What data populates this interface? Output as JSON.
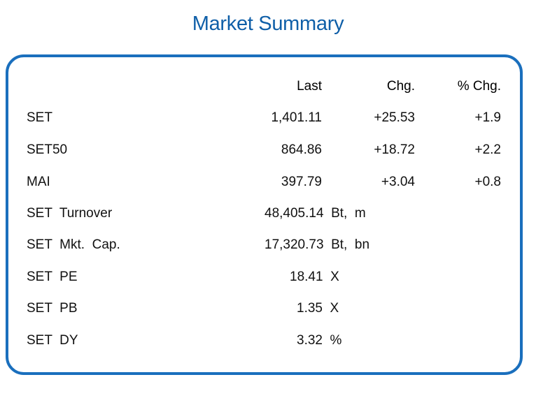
{
  "title": "Market Summary",
  "headers": {
    "last": "Last",
    "chg": "Chg.",
    "pct_chg": "% Chg."
  },
  "indices": [
    {
      "name": "SET",
      "last": "1,401.11",
      "chg": "+25.53",
      "pct_chg": "+1.9"
    },
    {
      "name": "SET50",
      "last": "864.86",
      "chg": "+18.72",
      "pct_chg": "+2.2"
    },
    {
      "name": "MAI",
      "last": "397.79",
      "chg": "+3.04",
      "pct_chg": "+0.8"
    }
  ],
  "stats": [
    {
      "name": "SET  Turnover",
      "value": "48,405.14  Bt,  m"
    },
    {
      "name": "SET  Mkt.  Cap.",
      "value": "17,320.73  Bt,  bn"
    },
    {
      "name": "SET  PE",
      "value": "18.41  X"
    },
    {
      "name": "SET  PB",
      "value": "1.35  X"
    },
    {
      "name": "SET  DY",
      "value": "3.32  %"
    }
  ],
  "colors": {
    "title": "#0f5fa8",
    "border": "#1a6fbd"
  }
}
